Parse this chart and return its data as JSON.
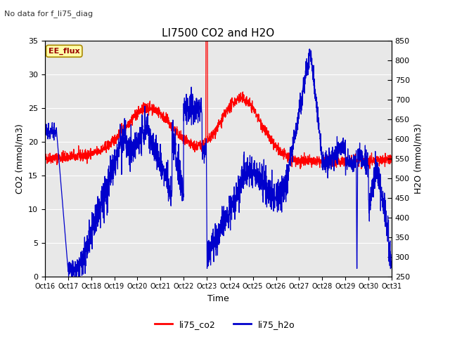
{
  "title": "LI7500 CO2 and H2O",
  "subtitle": "No data for f_li75_diag",
  "xlabel": "Time",
  "ylabel_left": "CO2 (mmol/m3)",
  "ylabel_right": "H2O (mmol/m3)",
  "ylim_left": [
    0,
    35
  ],
  "ylim_right": [
    250,
    850
  ],
  "yticks_left": [
    0,
    5,
    10,
    15,
    20,
    25,
    30,
    35
  ],
  "yticks_right": [
    250,
    300,
    350,
    400,
    450,
    500,
    550,
    600,
    650,
    700,
    750,
    800,
    850
  ],
  "xtick_labels": [
    "Oct 16",
    "Oct 17",
    "Oct 18",
    "Oct 19",
    "Oct 20",
    "Oct 21",
    "Oct 22",
    "Oct 23",
    "Oct 24",
    "Oct 25",
    "Oct 26",
    "Oct 27",
    "Oct 28",
    "Oct 29",
    "Oct 30",
    "Oct 31"
  ],
  "co2_color": "#ff0000",
  "h2o_color": "#0000cc",
  "co2_label": "li75_co2",
  "h2o_label": "li75_h2o",
  "annotation_box": "EE_flux",
  "background_color": "#ffffff",
  "plot_bg_color": "#e8e8e8",
  "grid_color": "#ffffff",
  "n_points": 2160,
  "seed": 42
}
